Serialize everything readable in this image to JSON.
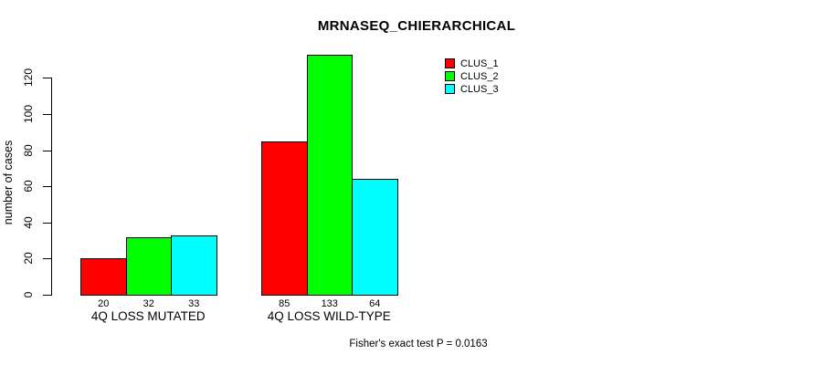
{
  "chart_data": {
    "type": "bar",
    "title": "MRNASEQ_CHIERARCHICAL",
    "ylabel": "number of cases",
    "xlabel": "",
    "categories": [
      "4Q LOSS MUTATED",
      "4Q LOSS WILD-TYPE"
    ],
    "series": [
      {
        "name": "CLUS_1",
        "color": "#FF0000",
        "values": [
          20,
          85
        ]
      },
      {
        "name": "CLUS_2",
        "color": "#00FF00",
        "values": [
          32,
          133
        ]
      },
      {
        "name": "CLUS_3",
        "color": "#00FFFF",
        "values": [
          33,
          64
        ]
      }
    ],
    "bar_value_labels": [
      [
        "20",
        "32",
        "33"
      ],
      [
        "85",
        "133",
        "64"
      ]
    ],
    "yticks": [
      0,
      20,
      40,
      60,
      80,
      100,
      120
    ],
    "ylim": [
      0,
      120
    ],
    "grid": false,
    "legend_position": "top-right",
    "bar_border_color": "#000000",
    "background": "#FFFFFF",
    "annotation": "Fisher's exact test P = 0.0163"
  }
}
